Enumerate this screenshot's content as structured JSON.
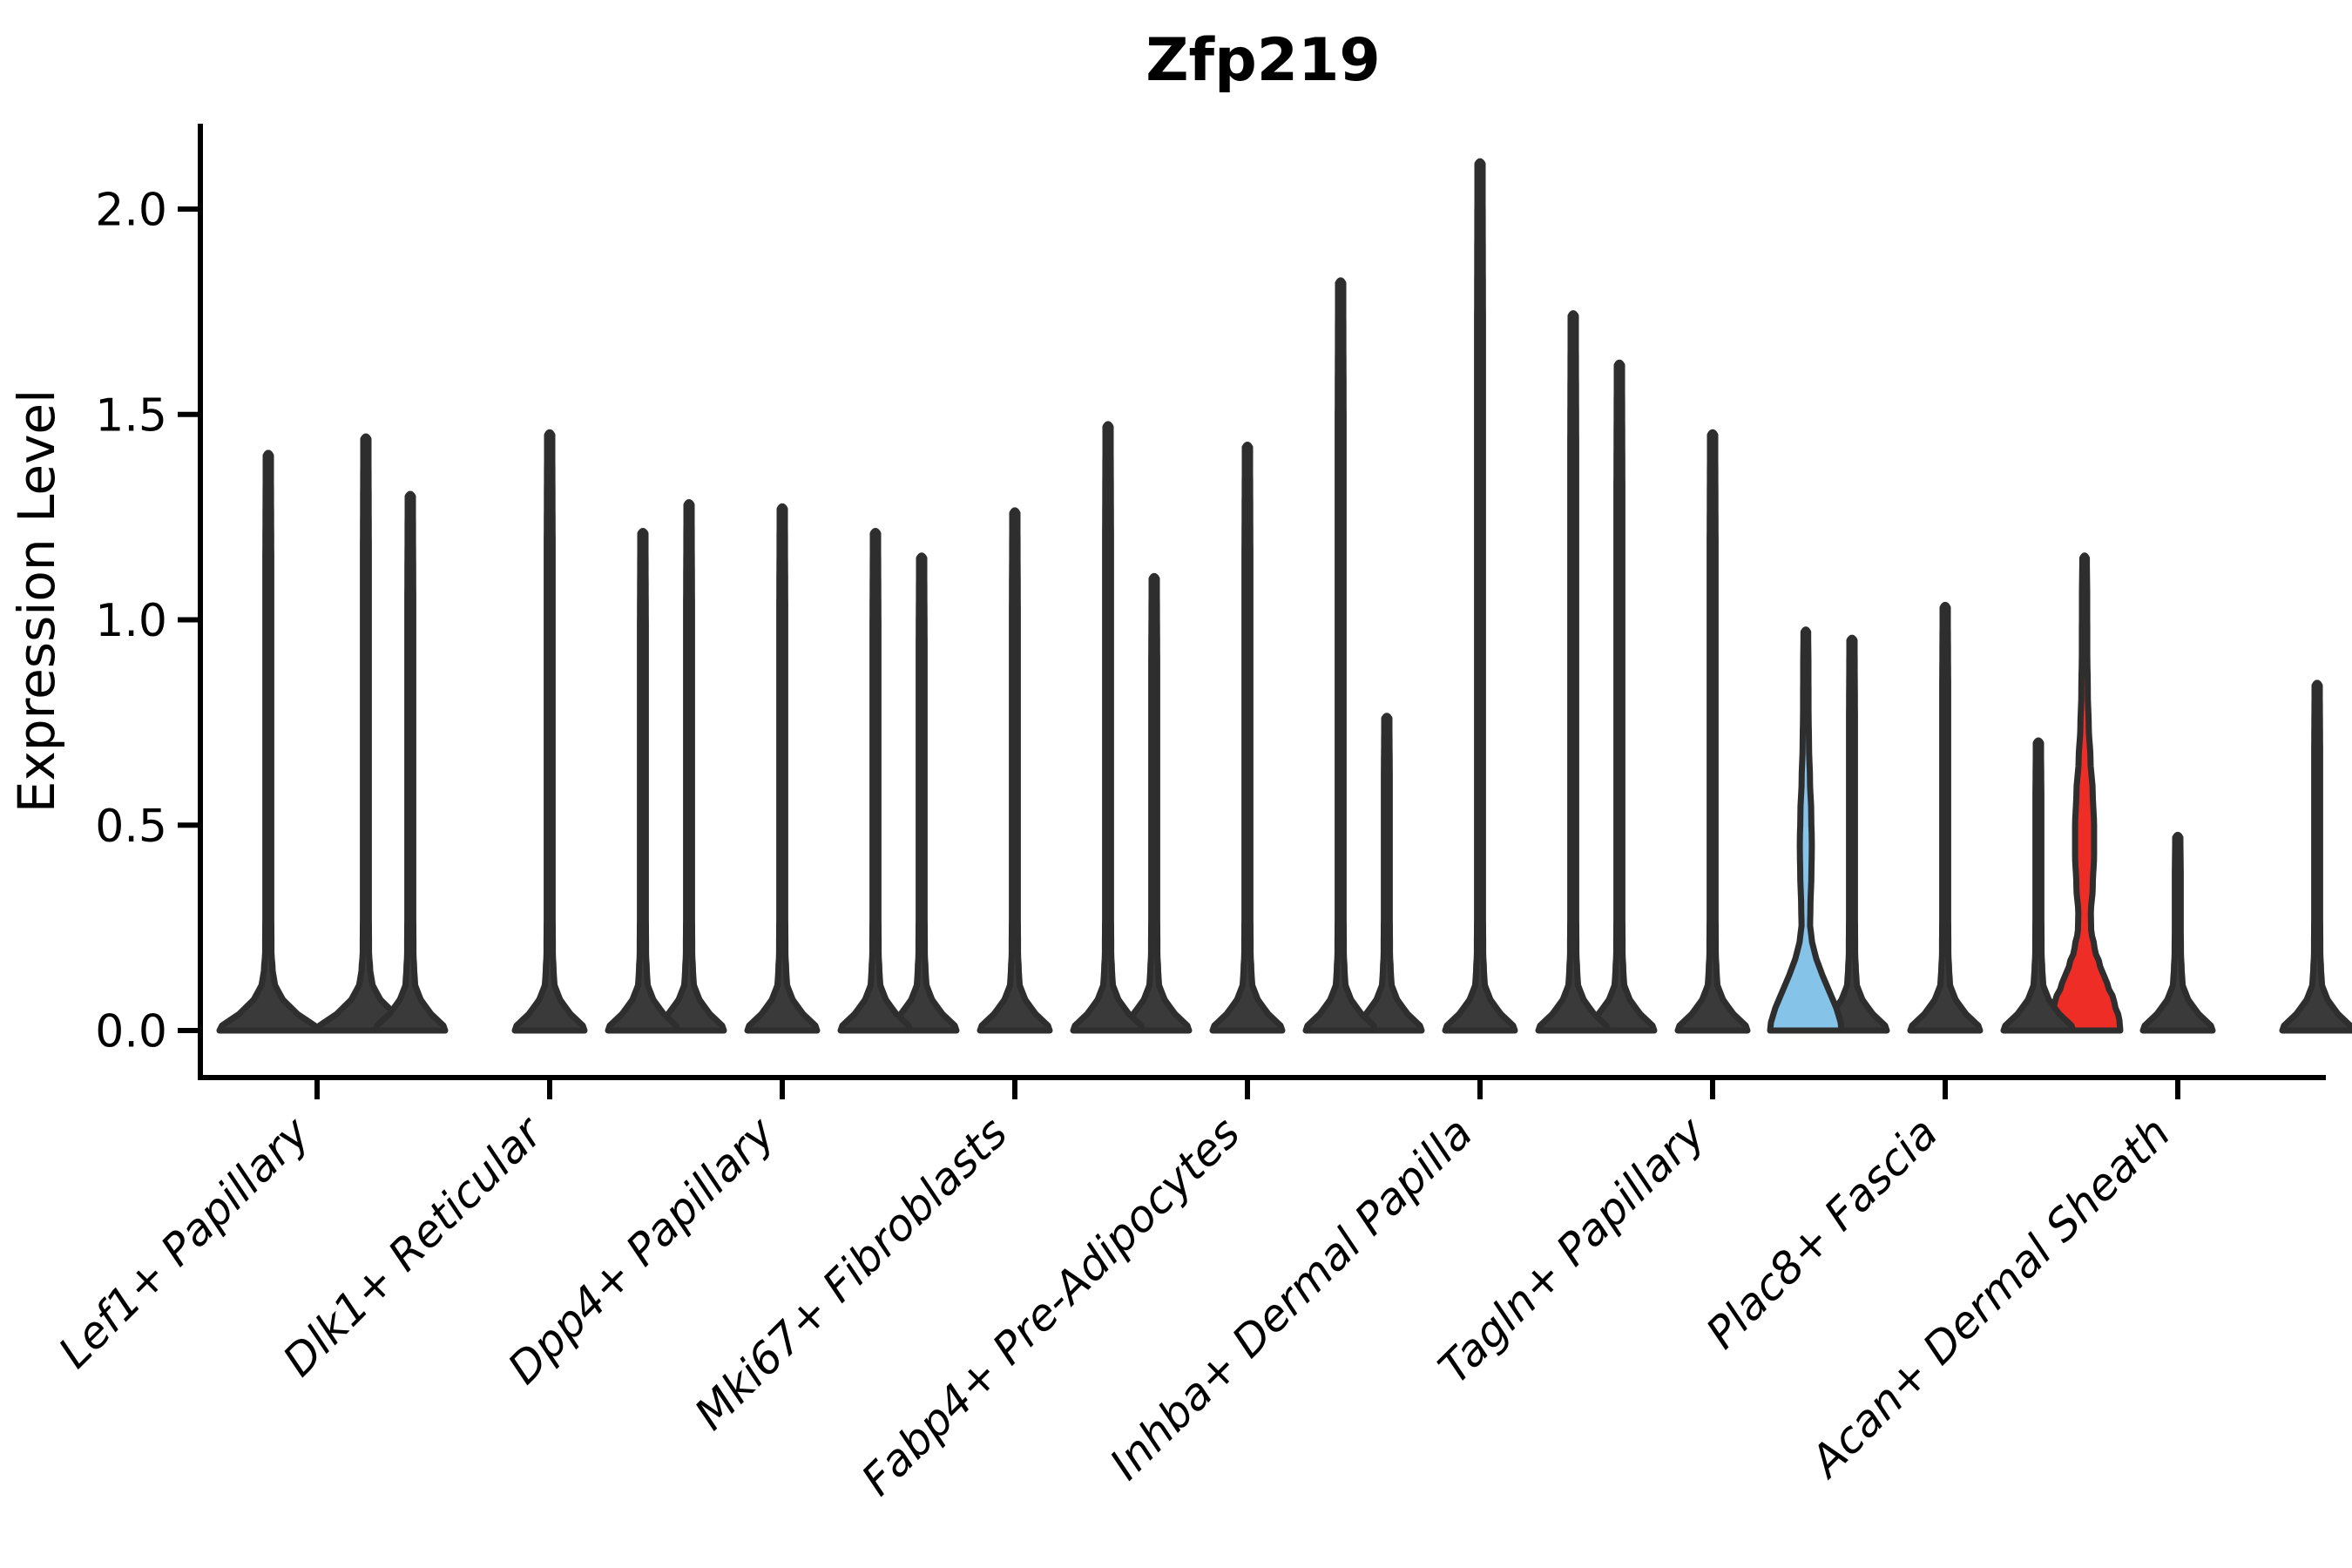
{
  "title": "Zfp219",
  "axes": {
    "ylabel": "Expression Level",
    "ytick_labels": [
      "0.0",
      "0.5",
      "1.0",
      "1.5",
      "2.0"
    ]
  },
  "colors": {
    "outline": "#2e2e2e",
    "spike_fill": "#3a3a3a",
    "highlight_blue": "#85C3E9",
    "highlight_red": "#EE2E26",
    "axis": "#000000"
  },
  "chart_data": {
    "type": "violin",
    "title": "Zfp219",
    "xlabel": "",
    "ylabel": "Expression Level",
    "ylim": [
      -0.12,
      2.21
    ],
    "yticks": [
      0.0,
      0.5,
      1.0,
      1.5,
      2.0
    ],
    "grid": false,
    "legend": "none",
    "categories": [
      "Lef1+ Papillary",
      "Dlk1+ Reticular",
      "Dpp4+ Papillary",
      "Mki67+ Fibroblasts",
      "Fabp4+ Pre-Adipocytes",
      "Inhba+ Dermal Papilla",
      "Tagln+ Papillary",
      "Plac8+ Fascia",
      "Acan+ Dermal Sheath"
    ],
    "groups": [
      {
        "category": "Lef1+ Papillary",
        "violins": [
          {
            "max": 1.4,
            "style": "spike"
          },
          {
            "max": 1.44,
            "style": "spike"
          }
        ]
      },
      {
        "category": "Dlk1+ Reticular",
        "violins": [
          {
            "max": 1.3,
            "style": "spike"
          },
          {
            "max": 1.45,
            "style": "spike"
          },
          {
            "max": 1.28,
            "style": "spike"
          }
        ]
      },
      {
        "category": "Dpp4+ Papillary",
        "violins": [
          {
            "max": 1.21,
            "style": "spike"
          },
          {
            "max": 1.27,
            "style": "spike"
          },
          {
            "max": 1.15,
            "style": "spike"
          }
        ]
      },
      {
        "category": "Mki67+ Fibroblasts",
        "violins": [
          {
            "max": 1.21,
            "style": "spike"
          },
          {
            "max": 1.26,
            "style": "spike"
          },
          {
            "max": 1.1,
            "style": "spike"
          }
        ]
      },
      {
        "category": "Fabp4+ Pre-Adipocytes",
        "violins": [
          {
            "max": 1.47,
            "style": "spike"
          },
          {
            "max": 1.42,
            "style": "spike"
          },
          {
            "max": 0.76,
            "style": "spike"
          }
        ]
      },
      {
        "category": "Inhba+ Dermal Papilla",
        "violins": [
          {
            "max": 1.82,
            "style": "spike"
          },
          {
            "max": 2.11,
            "style": "spike"
          },
          {
            "max": 1.62,
            "style": "spike"
          }
        ]
      },
      {
        "category": "Tagln+ Papillary",
        "violins": [
          {
            "max": 1.74,
            "style": "spike"
          },
          {
            "max": 1.45,
            "style": "spike"
          },
          {
            "max": 0.95,
            "style": "spike"
          }
        ]
      },
      {
        "category": "Plac8+ Fascia",
        "violins": [
          {
            "max": 0.97,
            "style": "violin_blue"
          },
          {
            "max": 1.03,
            "style": "spike"
          },
          {
            "max": 1.15,
            "style": "violin_red"
          }
        ]
      },
      {
        "category": "Acan+ Dermal Sheath",
        "violins": [
          {
            "max": 0.7,
            "style": "spike"
          },
          {
            "max": 0.47,
            "style": "spike"
          },
          {
            "max": 0.84,
            "style": "spike"
          }
        ]
      }
    ]
  }
}
